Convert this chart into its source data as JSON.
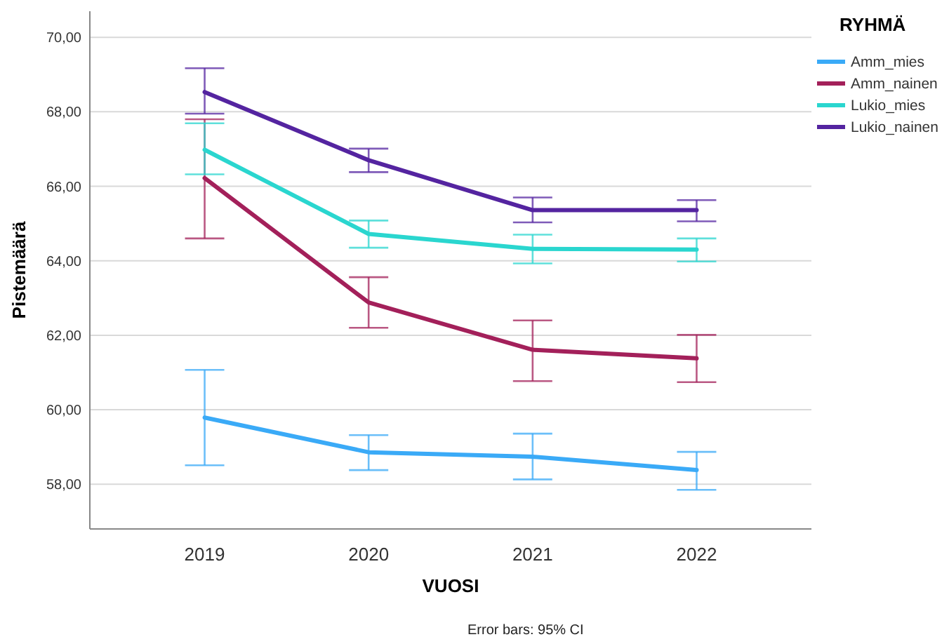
{
  "chart_data": {
    "type": "line",
    "xlabel": "VUOSI",
    "ylabel": "Pistemäärä",
    "legend_title": "RYHMÄ",
    "categories": [
      "2019",
      "2020",
      "2021",
      "2022"
    ],
    "series": [
      {
        "name": "Amm_mies",
        "color": "#3aaaf7",
        "values": [
          59.79,
          58.86,
          58.74,
          58.38
        ],
        "errors": [
          [
            58.51,
            61.07
          ],
          [
            58.38,
            59.32
          ],
          [
            58.13,
            59.36
          ],
          [
            57.85,
            58.87
          ]
        ]
      },
      {
        "name": "Amm_nainen",
        "color": "#a3205a",
        "values": [
          66.22,
          62.88,
          61.61,
          61.38
        ],
        "errors": [
          [
            64.6,
            67.8
          ],
          [
            62.2,
            63.56
          ],
          [
            60.77,
            62.4
          ],
          [
            60.74,
            62.01
          ]
        ]
      },
      {
        "name": "Lukio_mies",
        "color": "#2ad6cf",
        "values": [
          66.98,
          64.72,
          64.32,
          64.3
        ],
        "errors": [
          [
            66.32,
            67.69
          ],
          [
            64.35,
            65.08
          ],
          [
            63.93,
            64.7
          ],
          [
            63.98,
            64.6
          ]
        ]
      },
      {
        "name": "Lukio_nainen",
        "color": "#5424a0",
        "values": [
          68.53,
          66.7,
          65.36,
          65.36
        ],
        "errors": [
          [
            67.95,
            69.17
          ],
          [
            66.38,
            67.01
          ],
          [
            65.03,
            65.7
          ],
          [
            65.06,
            65.63
          ]
        ]
      }
    ],
    "ylim": [
      56.8,
      70.7
    ],
    "yticks": [
      {
        "value": 58,
        "label": "58,00"
      },
      {
        "value": 60,
        "label": "60,00"
      },
      {
        "value": 62,
        "label": "62,00"
      },
      {
        "value": 64,
        "label": "64,00"
      },
      {
        "value": 66,
        "label": "66,00"
      },
      {
        "value": 68,
        "label": "68,00"
      },
      {
        "value": 70,
        "label": "70,00"
      }
    ],
    "grid": "y",
    "legend": "right",
    "marker": "none",
    "line_style": "solid",
    "annotations": [
      "Error bars: 95% CI"
    ]
  }
}
